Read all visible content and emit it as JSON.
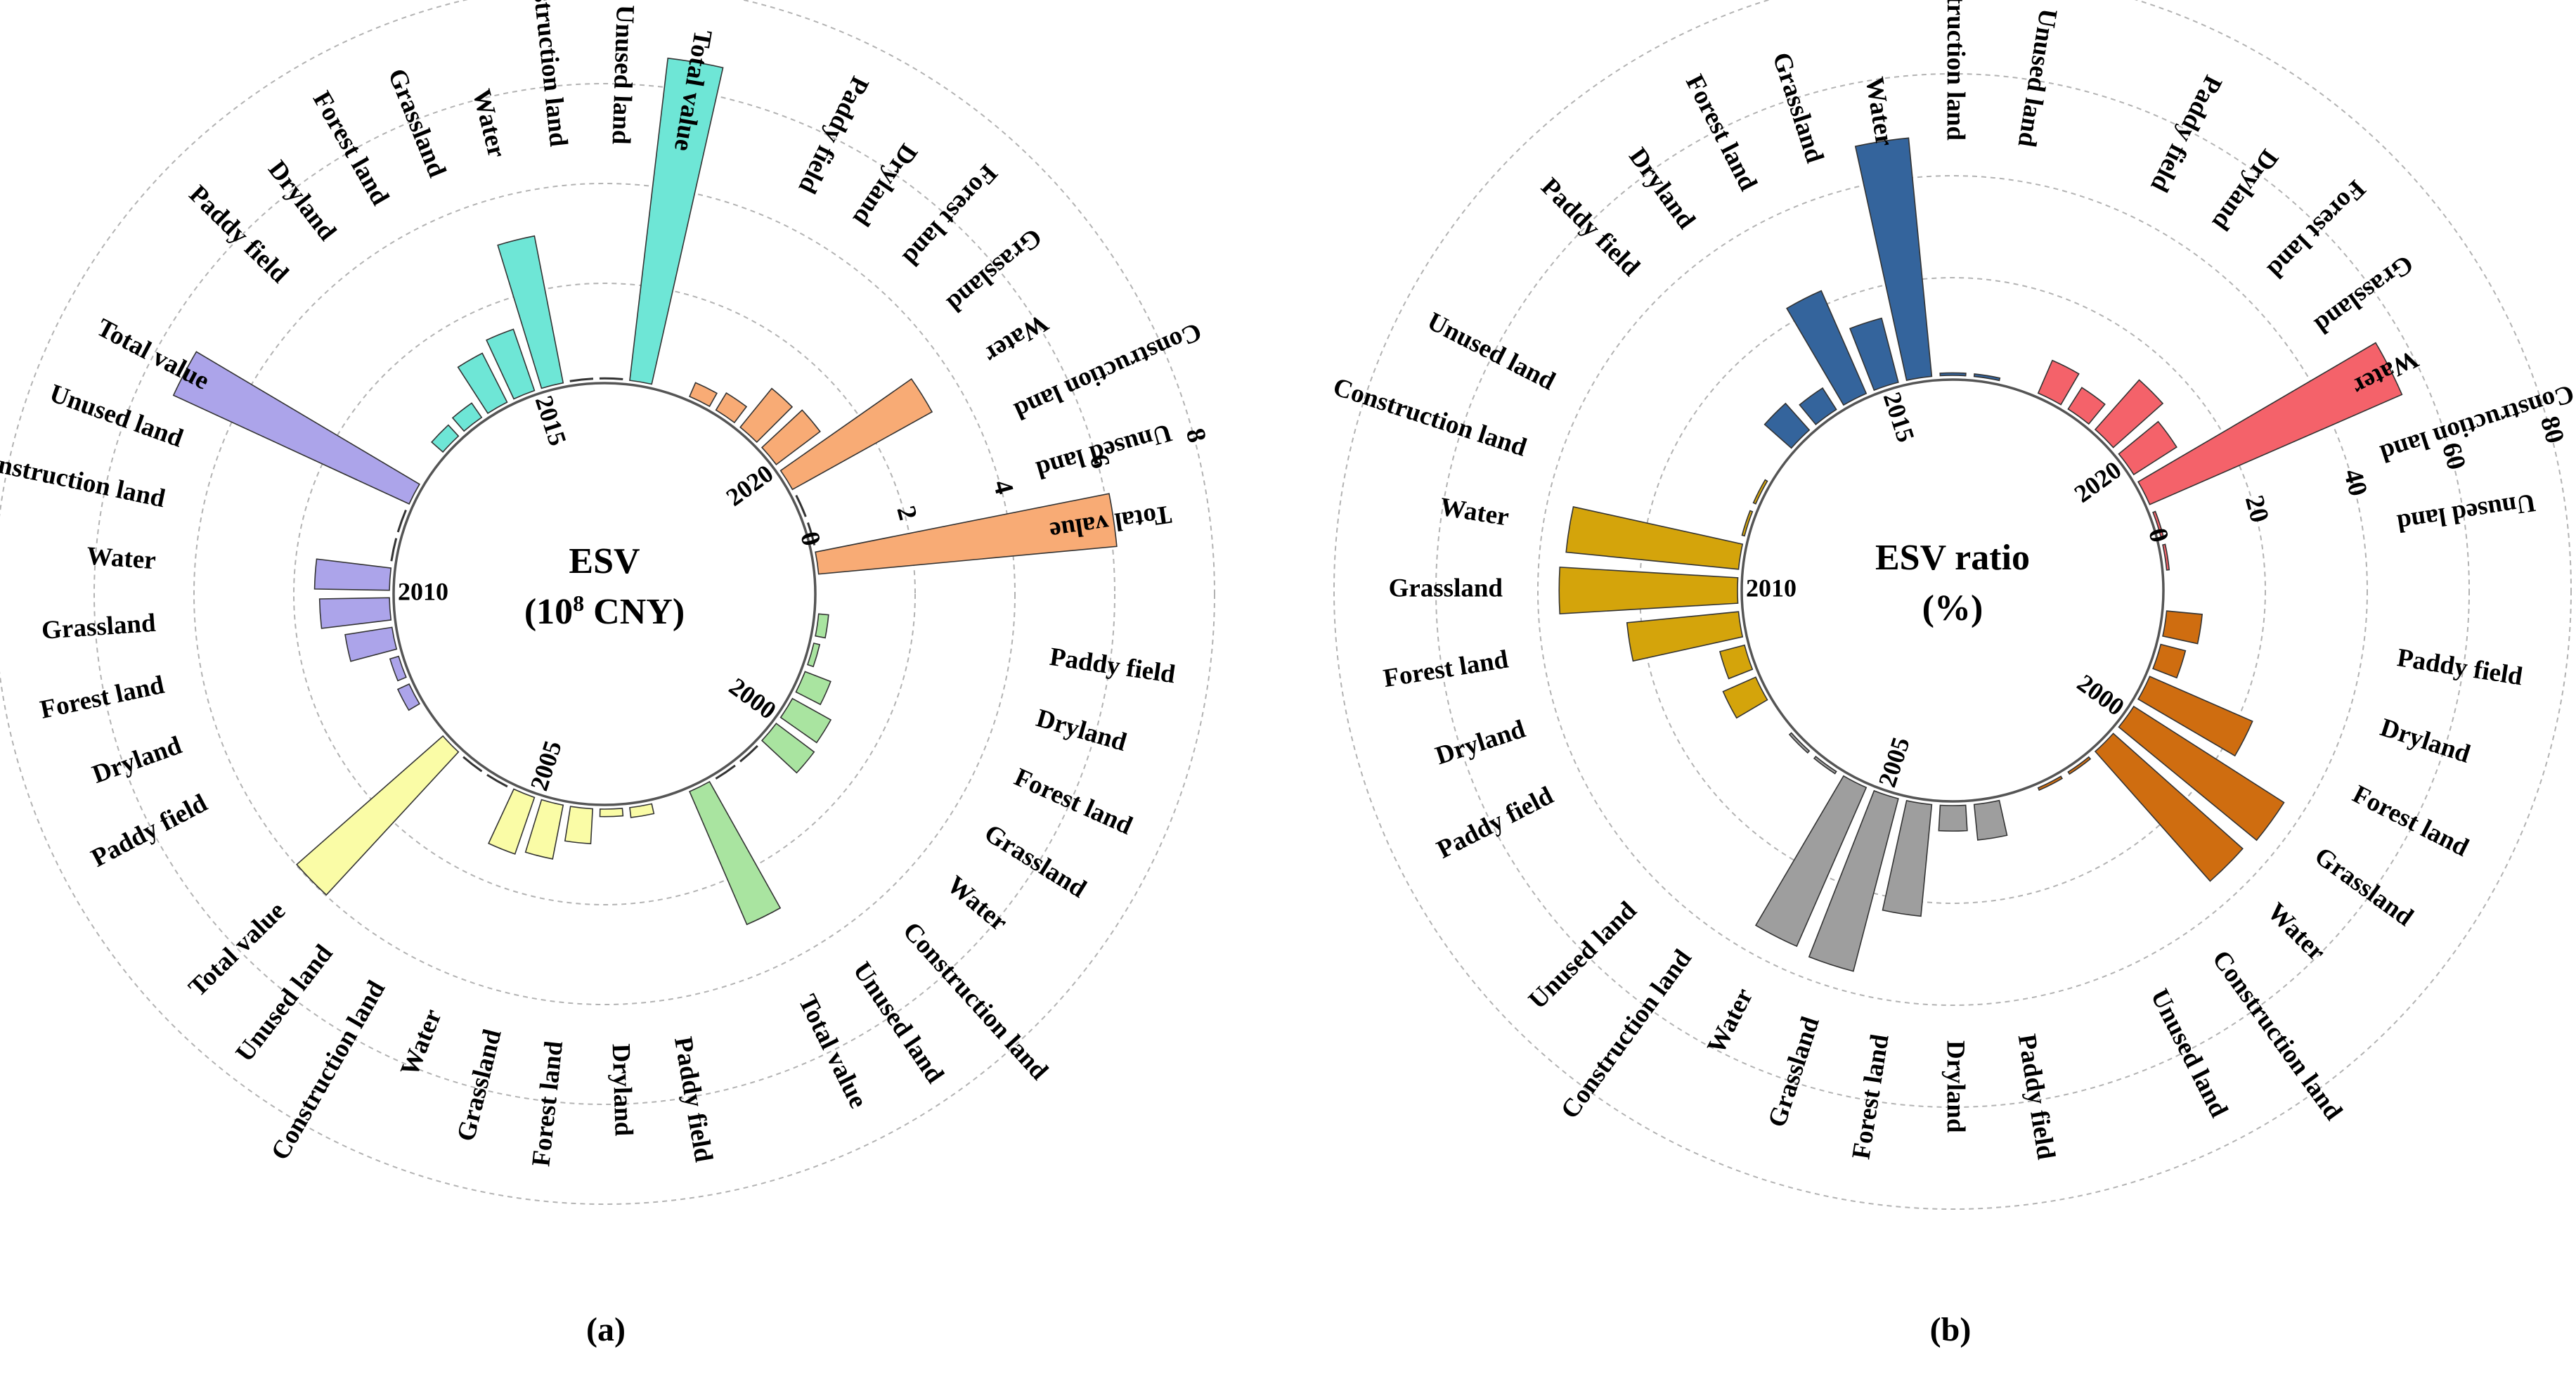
{
  "chart_data": [
    {
      "type": "bar",
      "subtype": "circular-bar",
      "panel_label": "(a)",
      "center_title": "ESV",
      "center_subtitle_prefix": "(10",
      "center_subtitle_sup": "8",
      "center_subtitle_suffix": " CNY)",
      "axis_ticks": [
        "0",
        "2",
        "4",
        "6",
        "8"
      ],
      "ylim": [
        0,
        8
      ],
      "categories": [
        "Paddy field",
        "Dryland",
        "Forest land",
        "Grassland",
        "Water",
        "Construction land",
        "Unused land",
        "Total value"
      ],
      "series": [
        {
          "name": "2000",
          "color": "#a9e4a0",
          "values": [
            0.2,
            0.12,
            0.55,
            0.88,
            0.95,
            0.01,
            0.01,
            2.9
          ]
        },
        {
          "name": "2005",
          "color": "#fafca6",
          "values": [
            0.2,
            0.15,
            0.7,
            1.1,
            1.2,
            0.01,
            0.01,
            3.9
          ]
        },
        {
          "name": "2010",
          "color": "#aca4ea",
          "values": [
            0.25,
            0.18,
            0.95,
            1.4,
            1.5,
            0.01,
            0.01,
            5.2
          ]
        },
        {
          "name": "2015",
          "color": "#6ee6d6",
          "values": [
            0.3,
            0.35,
            1.1,
            1.3,
            3.0,
            0.01,
            0.01,
            6.5
          ]
        },
        {
          "name": "2020",
          "color": "#f8ab75",
          "values": [
            0.3,
            0.4,
            1.0,
            1.1,
            3.2,
            0.01,
            0.01,
            6.0
          ]
        }
      ]
    },
    {
      "type": "bar",
      "subtype": "circular-bar",
      "panel_label": "(b)",
      "center_title": "ESV ratio",
      "center_subtitle": "(%)",
      "axis_ticks": [
        "0",
        "20",
        "40",
        "60",
        "80"
      ],
      "ylim": [
        0,
        80
      ],
      "categories": [
        "Paddy field",
        "Dryland",
        "Forest land",
        "Grassland",
        "Water",
        "Construction land",
        "Unused land"
      ],
      "series": [
        {
          "name": "2000",
          "color": "#cf6d10",
          "values": [
            7,
            5,
            22,
            35,
            34,
            0.5,
            0.5
          ]
        },
        {
          "name": "2005",
          "color": "#9e9e9e",
          "values": [
            7,
            5,
            22,
            35,
            34,
            0.5,
            0.5
          ]
        },
        {
          "name": "2010",
          "color": "#d4a40b",
          "values": [
            7,
            5,
            22,
            35,
            34,
            0.5,
            0.5
          ]
        },
        {
          "name": "2015",
          "color": "#34649c",
          "values": [
            7,
            5,
            22,
            13,
            47,
            0.5,
            0.5
          ]
        },
        {
          "name": "2020",
          "color": "#f4626a",
          "values": [
            7,
            5,
            13,
            10,
            54,
            0.5,
            0.5
          ]
        }
      ]
    }
  ]
}
